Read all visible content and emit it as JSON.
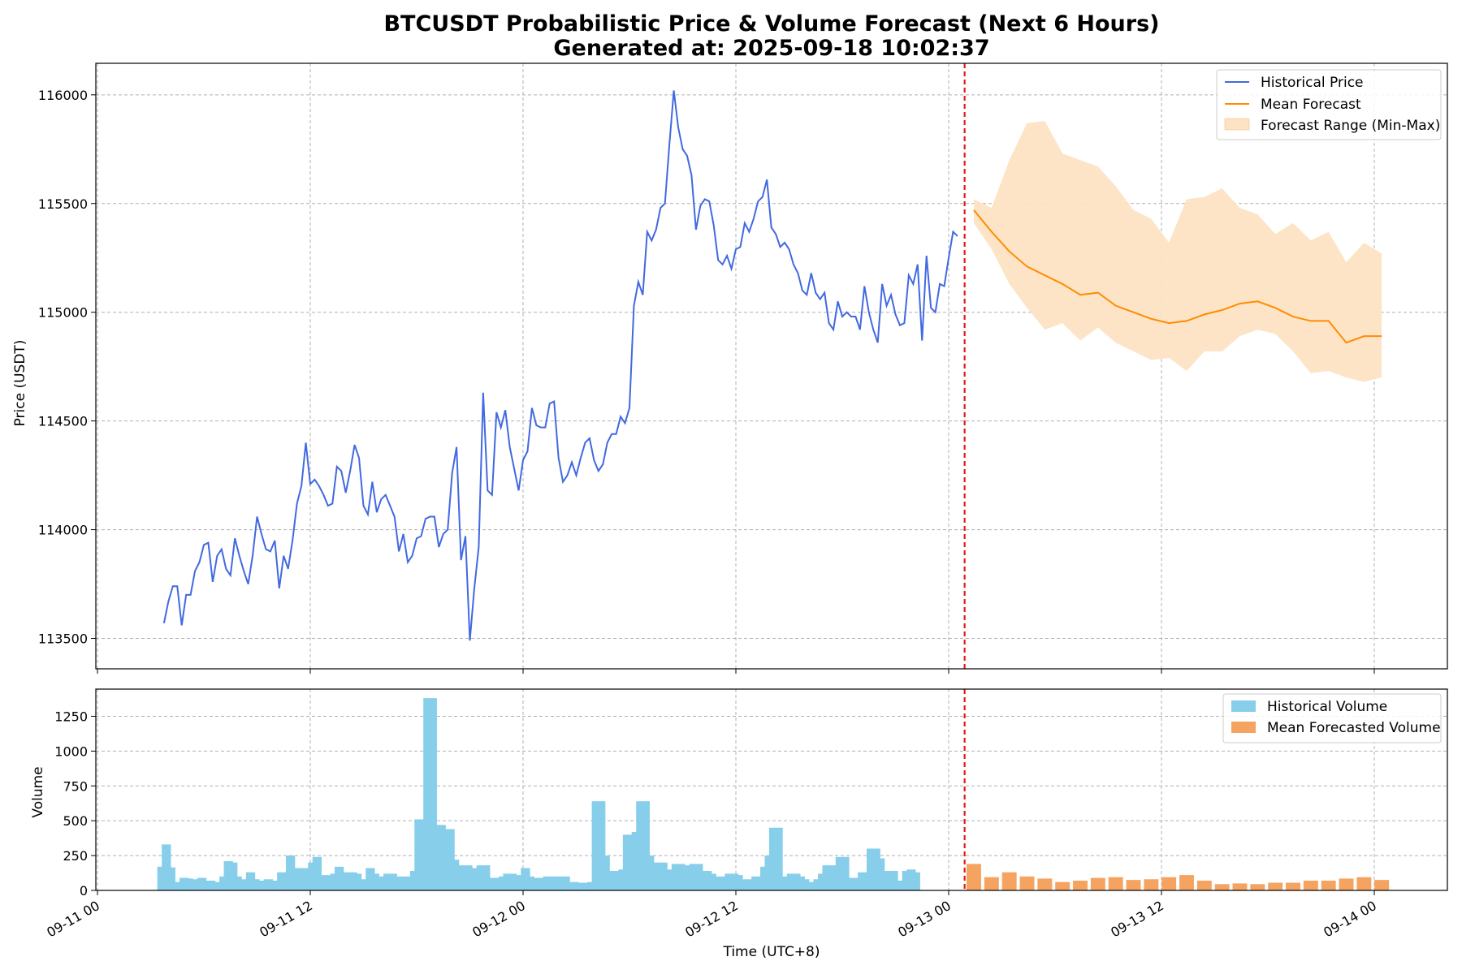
{
  "chart_data": {
    "type": "line",
    "title_line1": "BTCUSDT Probabilistic Price & Volume Forecast (Next 6 Hours)",
    "title_line2": "Generated at: 2025-09-18 10:02:37",
    "xlabel": "Time (UTC+8)",
    "x_ticks": [
      "09-11 00",
      "09-11 12",
      "09-12 00",
      "09-12 12",
      "09-13 00",
      "09-13 12",
      "09-14 00"
    ],
    "x_range_hours": [
      -1.5,
      62.2
    ],
    "forecast_start_hour": 48.9,
    "colors": {
      "historical_price": "#4169e1",
      "mean_forecast": "#ff8c00",
      "forecast_range": "#fde3c4",
      "historical_volume": "#87ceeb",
      "forecast_volume": "#f4a460",
      "forecast_divider": "#e31a1c"
    },
    "price_panel": {
      "ylabel": "Price (USDT)",
      "ylim": [
        113360,
        116145
      ],
      "y_ticks": [
        113500,
        114000,
        114500,
        115000,
        115500,
        116000
      ],
      "legend_position": "upper right",
      "legend": [
        "Historical Price",
        "Mean Forecast",
        "Forecast Range (Min-Max)"
      ],
      "historical_price": [
        [
          3.75,
          113570
        ],
        [
          4.0,
          113670
        ],
        [
          4.25,
          113740
        ],
        [
          4.5,
          113740
        ],
        [
          4.75,
          113560
        ],
        [
          5.0,
          113700
        ],
        [
          5.25,
          113700
        ],
        [
          5.5,
          113810
        ],
        [
          5.75,
          113850
        ],
        [
          6.0,
          113930
        ],
        [
          6.25,
          113940
        ],
        [
          6.5,
          113760
        ],
        [
          6.75,
          113880
        ],
        [
          7.0,
          113910
        ],
        [
          7.25,
          113820
        ],
        [
          7.5,
          113790
        ],
        [
          7.75,
          113960
        ],
        [
          8.0,
          113880
        ],
        [
          8.25,
          113810
        ],
        [
          8.5,
          113750
        ],
        [
          8.75,
          113880
        ],
        [
          9.0,
          114060
        ],
        [
          9.25,
          113980
        ],
        [
          9.5,
          113910
        ],
        [
          9.75,
          113900
        ],
        [
          10.0,
          113950
        ],
        [
          10.25,
          113730
        ],
        [
          10.5,
          113880
        ],
        [
          10.75,
          113820
        ],
        [
          11.0,
          113950
        ],
        [
          11.25,
          114120
        ],
        [
          11.5,
          114200
        ],
        [
          11.75,
          114400
        ],
        [
          12.0,
          114210
        ],
        [
          12.25,
          114230
        ],
        [
          12.5,
          114200
        ],
        [
          12.75,
          114160
        ],
        [
          13.0,
          114110
        ],
        [
          13.25,
          114120
        ],
        [
          13.5,
          114290
        ],
        [
          13.75,
          114270
        ],
        [
          14.0,
          114170
        ],
        [
          14.25,
          114270
        ],
        [
          14.5,
          114390
        ],
        [
          14.75,
          114330
        ],
        [
          15.0,
          114110
        ],
        [
          15.25,
          114070
        ],
        [
          15.5,
          114220
        ],
        [
          15.75,
          114080
        ],
        [
          16.0,
          114140
        ],
        [
          16.25,
          114160
        ],
        [
          16.5,
          114110
        ],
        [
          16.75,
          114060
        ],
        [
          17.0,
          113900
        ],
        [
          17.25,
          113980
        ],
        [
          17.5,
          113850
        ],
        [
          17.75,
          113880
        ],
        [
          18.0,
          113960
        ],
        [
          18.25,
          113970
        ],
        [
          18.5,
          114050
        ],
        [
          18.75,
          114060
        ],
        [
          19.0,
          114060
        ],
        [
          19.25,
          113920
        ],
        [
          19.5,
          113980
        ],
        [
          19.75,
          114000
        ],
        [
          20.0,
          114260
        ],
        [
          20.25,
          114380
        ],
        [
          20.5,
          113860
        ],
        [
          20.75,
          113970
        ],
        [
          21.0,
          113490
        ],
        [
          21.25,
          113730
        ],
        [
          21.5,
          113920
        ],
        [
          21.75,
          114630
        ],
        [
          22.0,
          114180
        ],
        [
          22.25,
          114160
        ],
        [
          22.5,
          114540
        ],
        [
          22.75,
          114470
        ],
        [
          23.0,
          114550
        ],
        [
          23.25,
          114380
        ],
        [
          23.5,
          114280
        ],
        [
          23.75,
          114180
        ],
        [
          24.0,
          114320
        ],
        [
          24.25,
          114360
        ],
        [
          24.5,
          114560
        ],
        [
          24.75,
          114480
        ],
        [
          25.0,
          114470
        ],
        [
          25.25,
          114470
        ],
        [
          25.5,
          114580
        ],
        [
          25.75,
          114590
        ],
        [
          26.0,
          114330
        ],
        [
          26.25,
          114220
        ],
        [
          26.5,
          114250
        ],
        [
          26.75,
          114310
        ],
        [
          27.0,
          114250
        ],
        [
          27.25,
          114330
        ],
        [
          27.5,
          114400
        ],
        [
          27.75,
          114420
        ],
        [
          28.0,
          114320
        ],
        [
          28.25,
          114270
        ],
        [
          28.5,
          114300
        ],
        [
          28.75,
          114400
        ],
        [
          29.0,
          114440
        ],
        [
          29.25,
          114440
        ],
        [
          29.5,
          114520
        ],
        [
          29.75,
          114490
        ],
        [
          30.0,
          114560
        ],
        [
          30.25,
          115030
        ],
        [
          30.5,
          115140
        ],
        [
          30.75,
          115080
        ],
        [
          31.0,
          115370
        ],
        [
          31.25,
          115330
        ],
        [
          31.5,
          115380
        ],
        [
          31.75,
          115480
        ],
        [
          32.0,
          115500
        ],
        [
          32.25,
          115770
        ],
        [
          32.5,
          116020
        ],
        [
          32.75,
          115850
        ],
        [
          33.0,
          115750
        ],
        [
          33.25,
          115720
        ],
        [
          33.5,
          115630
        ],
        [
          33.75,
          115380
        ],
        [
          34.0,
          115490
        ],
        [
          34.25,
          115520
        ],
        [
          34.5,
          115510
        ],
        [
          34.75,
          115400
        ],
        [
          35.0,
          115240
        ],
        [
          35.25,
          115220
        ],
        [
          35.5,
          115260
        ],
        [
          35.75,
          115200
        ],
        [
          36.0,
          115290
        ],
        [
          36.25,
          115300
        ],
        [
          36.5,
          115410
        ],
        [
          36.75,
          115370
        ],
        [
          37.0,
          115430
        ],
        [
          37.25,
          115510
        ],
        [
          37.5,
          115530
        ],
        [
          37.75,
          115610
        ],
        [
          38.0,
          115390
        ],
        [
          38.25,
          115360
        ],
        [
          38.5,
          115300
        ],
        [
          38.75,
          115320
        ],
        [
          39.0,
          115290
        ],
        [
          39.25,
          115220
        ],
        [
          39.5,
          115180
        ],
        [
          39.75,
          115100
        ],
        [
          40.0,
          115080
        ],
        [
          40.25,
          115180
        ],
        [
          40.5,
          115090
        ],
        [
          40.75,
          115060
        ],
        [
          41.0,
          115090
        ],
        [
          41.25,
          114950
        ],
        [
          41.5,
          114920
        ],
        [
          41.75,
          115050
        ],
        [
          42.0,
          114980
        ],
        [
          42.25,
          115000
        ],
        [
          42.5,
          114980
        ],
        [
          42.75,
          114980
        ],
        [
          43.0,
          114920
        ],
        [
          43.25,
          115120
        ],
        [
          43.5,
          115000
        ],
        [
          43.75,
          114920
        ],
        [
          44.0,
          114860
        ],
        [
          44.25,
          115130
        ],
        [
          44.5,
          115030
        ],
        [
          44.75,
          115080
        ],
        [
          45.0,
          114990
        ],
        [
          45.25,
          114940
        ],
        [
          45.5,
          114950
        ],
        [
          45.75,
          115170
        ],
        [
          46.0,
          115130
        ],
        [
          46.25,
          115220
        ],
        [
          46.5,
          114870
        ],
        [
          46.75,
          115260
        ],
        [
          47.0,
          115020
        ],
        [
          47.25,
          115000
        ],
        [
          47.5,
          115130
        ],
        [
          47.75,
          115120
        ],
        [
          48.0,
          115250
        ],
        [
          48.25,
          115370
        ],
        [
          48.5,
          115350
        ]
      ],
      "mean_forecast": [
        [
          49.42,
          115470
        ],
        [
          50.42,
          115370
        ],
        [
          51.42,
          115280
        ],
        [
          52.42,
          115210
        ],
        [
          53.42,
          115170
        ],
        [
          54.42,
          115130
        ],
        [
          55.42,
          115080
        ],
        [
          56.42,
          115090
        ],
        [
          57.42,
          115030
        ],
        [
          58.42,
          115000
        ],
        [
          59.42,
          114970
        ],
        [
          60.42,
          114950
        ],
        [
          61.42,
          114960
        ],
        [
          62.42,
          114990
        ],
        [
          63.42,
          115010
        ],
        [
          64.42,
          115040
        ],
        [
          65.42,
          115050
        ],
        [
          66.42,
          115020
        ],
        [
          67.42,
          114980
        ],
        [
          68.42,
          114960
        ],
        [
          69.42,
          114960
        ],
        [
          70.42,
          114860
        ],
        [
          71.42,
          114890
        ],
        [
          72.42,
          114890
        ]
      ],
      "forecast_max": [
        [
          49.42,
          115520
        ],
        [
          50.42,
          115480
        ],
        [
          51.42,
          115700
        ],
        [
          52.42,
          115870
        ],
        [
          53.42,
          115880
        ],
        [
          54.42,
          115730
        ],
        [
          55.42,
          115700
        ],
        [
          56.42,
          115670
        ],
        [
          57.42,
          115580
        ],
        [
          58.42,
          115470
        ],
        [
          59.42,
          115430
        ],
        [
          60.42,
          115320
        ],
        [
          61.42,
          115520
        ],
        [
          62.42,
          115530
        ],
        [
          63.42,
          115570
        ],
        [
          64.42,
          115480
        ],
        [
          65.42,
          115450
        ],
        [
          66.42,
          115360
        ],
        [
          67.42,
          115410
        ],
        [
          68.42,
          115330
        ],
        [
          69.42,
          115370
        ],
        [
          70.42,
          115230
        ],
        [
          71.42,
          115320
        ],
        [
          72.42,
          115270
        ]
      ],
      "forecast_min": [
        [
          49.42,
          115410
        ],
        [
          50.42,
          115290
        ],
        [
          51.42,
          115130
        ],
        [
          52.42,
          115020
        ],
        [
          53.42,
          114920
        ],
        [
          54.42,
          114950
        ],
        [
          55.42,
          114870
        ],
        [
          56.42,
          114930
        ],
        [
          57.42,
          114860
        ],
        [
          58.42,
          114820
        ],
        [
          59.42,
          114780
        ],
        [
          60.42,
          114790
        ],
        [
          61.42,
          114730
        ],
        [
          62.42,
          114820
        ],
        [
          63.42,
          114820
        ],
        [
          64.42,
          114890
        ],
        [
          65.42,
          114920
        ],
        [
          66.42,
          114900
        ],
        [
          67.42,
          114820
        ],
        [
          68.42,
          114720
        ],
        [
          69.42,
          114730
        ],
        [
          70.42,
          114700
        ],
        [
          71.42,
          114680
        ],
        [
          72.42,
          114700
        ]
      ]
    },
    "volume_panel": {
      "ylabel": "Volume",
      "ylim": [
        0,
        1445
      ],
      "y_ticks": [
        0,
        250,
        500,
        750,
        1000,
        1250
      ],
      "legend_position": "upper right",
      "legend": [
        "Historical Volume",
        "Mean Forecasted Volume"
      ],
      "bar_width_hours": 0.25,
      "historical_start_hour": 3.375,
      "historical_volume": [
        170,
        330,
        330,
        165,
        60,
        90,
        90,
        85,
        80,
        90,
        90,
        70,
        70,
        60,
        100,
        210,
        210,
        200,
        100,
        80,
        130,
        130,
        80,
        70,
        80,
        80,
        70,
        130,
        130,
        250,
        250,
        160,
        160,
        160,
        200,
        240,
        240,
        110,
        110,
        120,
        170,
        170,
        130,
        130,
        130,
        120,
        80,
        160,
        160,
        120,
        100,
        120,
        120,
        120,
        100,
        100,
        100,
        140,
        510,
        510,
        1380,
        1380,
        1380,
        470,
        470,
        440,
        440,
        220,
        180,
        180,
        180,
        160,
        180,
        180,
        180,
        90,
        90,
        100,
        120,
        120,
        120,
        110,
        160,
        160,
        100,
        90,
        90,
        100,
        100,
        100,
        100,
        100,
        100,
        60,
        60,
        55,
        55,
        60,
        640,
        640,
        640,
        250,
        140,
        140,
        150,
        400,
        400,
        420,
        640,
        640,
        640,
        250,
        200,
        200,
        200,
        150,
        190,
        190,
        190,
        180,
        190,
        190,
        190,
        140,
        140,
        120,
        100,
        100,
        120,
        120,
        120,
        110,
        80,
        80,
        100,
        100,
        170,
        250,
        450,
        450,
        450,
        100,
        120,
        120,
        120,
        100,
        80,
        60,
        80,
        120,
        180,
        180,
        180,
        240,
        240,
        240,
        90,
        90,
        130,
        130,
        300,
        300,
        300,
        230,
        140,
        140,
        140,
        70,
        140,
        150,
        150,
        130
      ],
      "forecast_volume": [
        [
          49.42,
          190
        ],
        [
          50.42,
          95
        ],
        [
          51.42,
          130
        ],
        [
          52.42,
          100
        ],
        [
          53.42,
          85
        ],
        [
          54.42,
          60
        ],
        [
          55.42,
          70
        ],
        [
          56.42,
          90
        ],
        [
          57.42,
          95
        ],
        [
          58.42,
          75
        ],
        [
          59.42,
          80
        ],
        [
          60.42,
          95
        ],
        [
          61.42,
          110
        ],
        [
          62.42,
          70
        ],
        [
          63.42,
          45
        ],
        [
          64.42,
          50
        ],
        [
          65.42,
          45
        ],
        [
          66.42,
          55
        ],
        [
          67.42,
          55
        ],
        [
          68.42,
          70
        ],
        [
          69.42,
          70
        ],
        [
          70.42,
          85
        ],
        [
          71.42,
          95
        ],
        [
          72.42,
          75
        ]
      ]
    }
  }
}
